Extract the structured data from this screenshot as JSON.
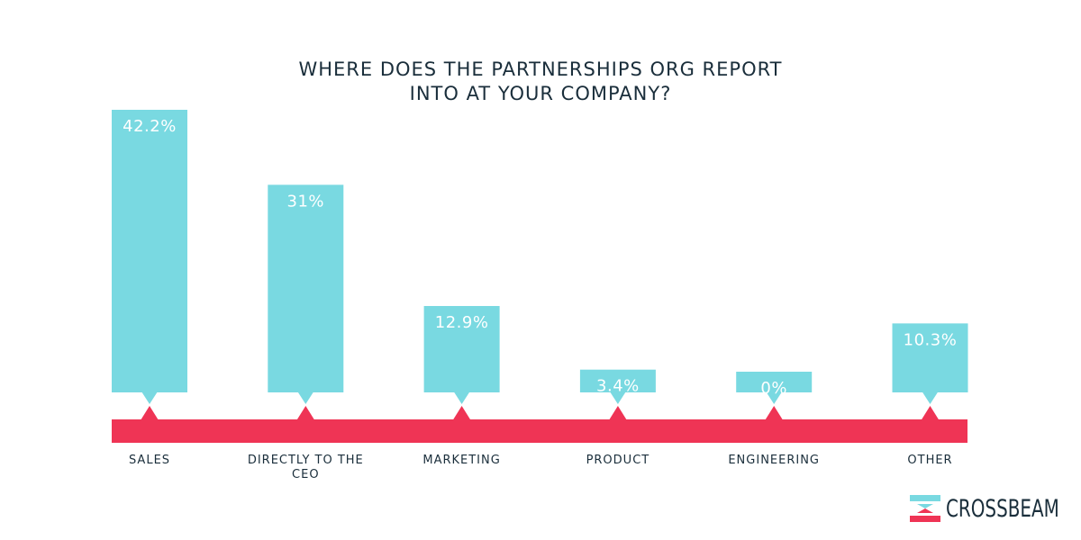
{
  "colors": {
    "bar": "#79d9e1",
    "baseline": "#ef3455",
    "text": "#1a2e3b",
    "value_text": "#ffffff"
  },
  "brand": {
    "name": "CROSSBEAM",
    "logo_icon": "crossbeam-logo-icon"
  },
  "chart_data": {
    "type": "bar",
    "title_lines": [
      "WHERE DOES THE PARTNERSHIPS ORG REPORT",
      "INTO AT YOUR COMPANY?"
    ],
    "categories": [
      "SALES",
      "DIRECTLY TO THE CEO",
      "MARKETING",
      "PRODUCT",
      "ENGINEERING",
      "OTHER"
    ],
    "category_lines": [
      [
        "SALES"
      ],
      [
        "DIRECTLY TO THE",
        "CEO"
      ],
      [
        "MARKETING"
      ],
      [
        "PRODUCT"
      ],
      [
        "ENGINEERING"
      ],
      [
        "OTHER"
      ]
    ],
    "values": [
      42.2,
      31,
      12.9,
      3.4,
      0,
      10.3
    ],
    "value_labels": [
      "42.2%",
      "31%",
      "12.9%",
      "3.4%",
      "0%",
      "10.3%"
    ],
    "unit": "%",
    "grid": false
  }
}
